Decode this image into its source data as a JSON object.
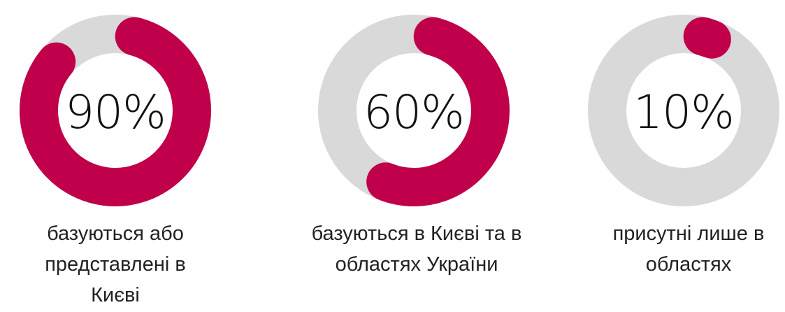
{
  "chart_data": {
    "type": "donut",
    "colors": {
      "filled": "#C0004A",
      "track": "#D9D9D9"
    },
    "items": [
      {
        "value": 90,
        "center_label": "90%",
        "label": "базуються або представлені в Києві"
      },
      {
        "value": 60,
        "center_label": "60%",
        "label": "базуються в Києві та в областях України"
      },
      {
        "value": 10,
        "center_label": "10%",
        "label": "присутні лише в областях"
      }
    ]
  }
}
